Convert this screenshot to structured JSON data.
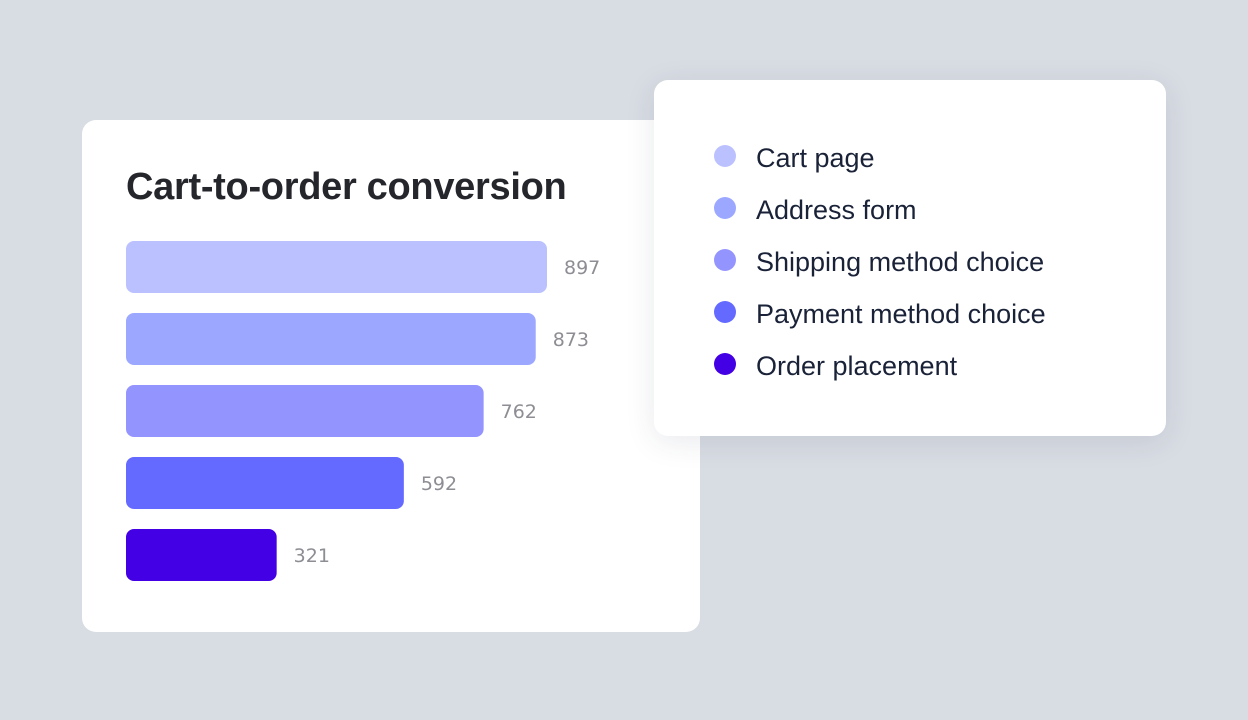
{
  "chart_data": {
    "type": "bar",
    "orientation": "horizontal",
    "title": "Cart-to-order conversion",
    "categories": [
      "Cart page",
      "Address form",
      "Shipping method choice",
      "Payment method choice",
      "Order placement"
    ],
    "values": [
      897,
      873,
      762,
      592,
      321
    ],
    "value_labels": [
      "897",
      "873",
      "762",
      "592",
      "321"
    ],
    "colors": [
      "#bbc1ff",
      "#9ca8ff",
      "#9494ff",
      "#6469ff",
      "#4300e5"
    ],
    "legend_position": "right"
  }
}
